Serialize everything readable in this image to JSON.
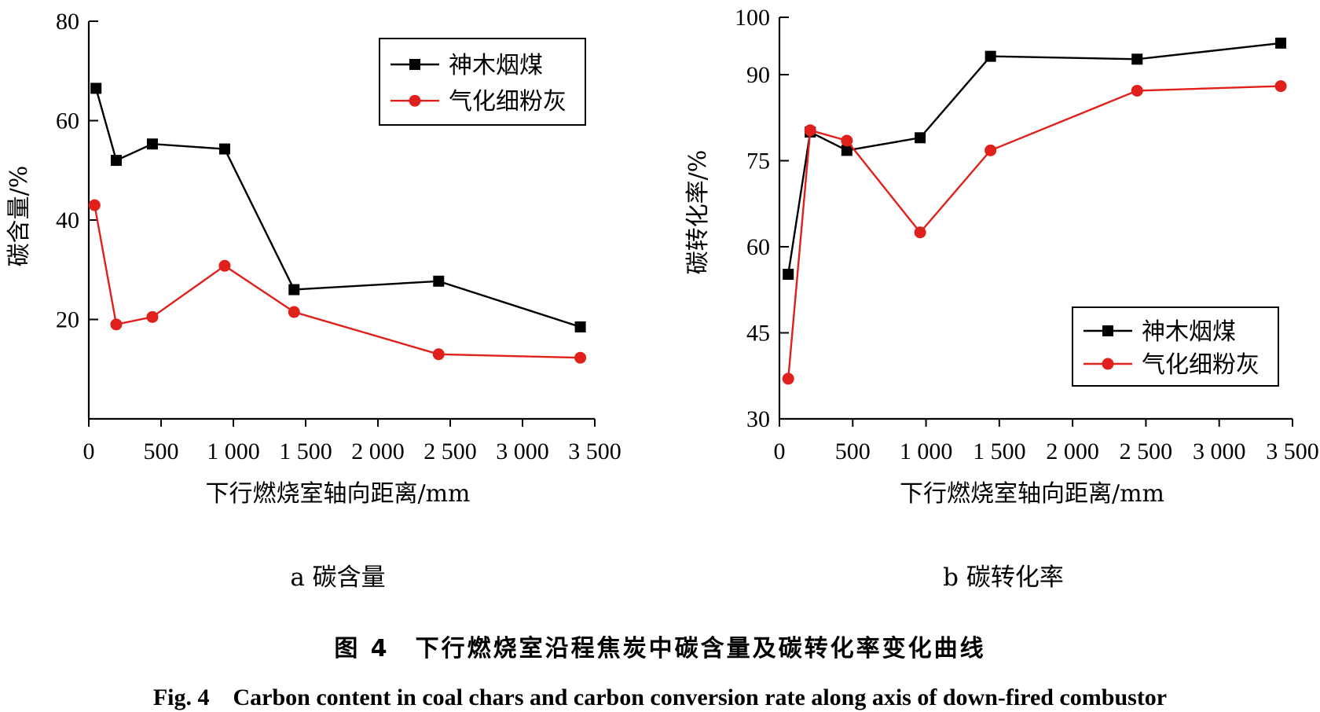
{
  "chart_data": [
    {
      "type": "line",
      "panel_label": "a 碳含量",
      "xlabel": "下行燃烧室轴向距离/mm",
      "ylabel": "碳含量/%",
      "xlim": [
        0,
        3500
      ],
      "ylim": [
        0,
        80
      ],
      "xticks": [
        "0",
        "500",
        "1 000",
        "1 500",
        "2 000",
        "2 500",
        "3 000",
        "3 500"
      ],
      "xtick_values": [
        0,
        500,
        1000,
        1500,
        2000,
        2500,
        3000,
        3500
      ],
      "yticks": [
        "20",
        "40",
        "60",
        "80"
      ],
      "ytick_values": [
        20,
        40,
        60,
        80
      ],
      "legend_position": "top-right",
      "series": [
        {
          "name": "神木烟煤",
          "marker": "square",
          "color": "#000000",
          "x": [
            50,
            190,
            440,
            940,
            1420,
            2420,
            3400
          ],
          "y": [
            66.5,
            52.0,
            55.3,
            54.3,
            26.0,
            27.7,
            18.5
          ]
        },
        {
          "name": "气化细粉灰",
          "marker": "circle",
          "color": "#e0201a",
          "x": [
            40,
            190,
            440,
            940,
            1420,
            2420,
            3400
          ],
          "y": [
            43.0,
            19.0,
            20.5,
            30.8,
            21.5,
            13.0,
            12.3
          ]
        }
      ]
    },
    {
      "type": "line",
      "panel_label": "b 碳转化率",
      "xlabel": "下行燃烧室轴向距离/mm",
      "ylabel": "碳转化率/%",
      "xlim": [
        0,
        3500
      ],
      "ylim": [
        30,
        100
      ],
      "xticks": [
        "0",
        "500",
        "1 000",
        "1 500",
        "2 000",
        "2 500",
        "3 000",
        "3 500"
      ],
      "xtick_values": [
        0,
        500,
        1000,
        1500,
        2000,
        2500,
        3000,
        3500
      ],
      "yticks": [
        "30",
        "45",
        "60",
        "75",
        "90",
        "100"
      ],
      "ytick_values": [
        30,
        45,
        60,
        75,
        90,
        100
      ],
      "legend_position": "bottom-right",
      "series": [
        {
          "name": "神木烟煤",
          "marker": "square",
          "color": "#000000",
          "x": [
            60,
            210,
            460,
            960,
            1440,
            2440,
            3420
          ],
          "y": [
            55.2,
            80.0,
            76.8,
            79.0,
            93.2,
            92.7,
            95.5
          ]
        },
        {
          "name": "气化细粉灰",
          "marker": "circle",
          "color": "#e0201a",
          "x": [
            60,
            210,
            460,
            960,
            1440,
            2440,
            3420
          ],
          "y": [
            37.0,
            80.3,
            78.5,
            62.5,
            76.8,
            87.2,
            88.0
          ]
        }
      ]
    }
  ],
  "caption": {
    "cn": "图 4　下行燃烧室沿程焦炭中碳含量及碳转化率变化曲线",
    "en": "Fig. 4　Carbon content in coal chars and carbon conversion rate along axis of down-fired combustor"
  }
}
